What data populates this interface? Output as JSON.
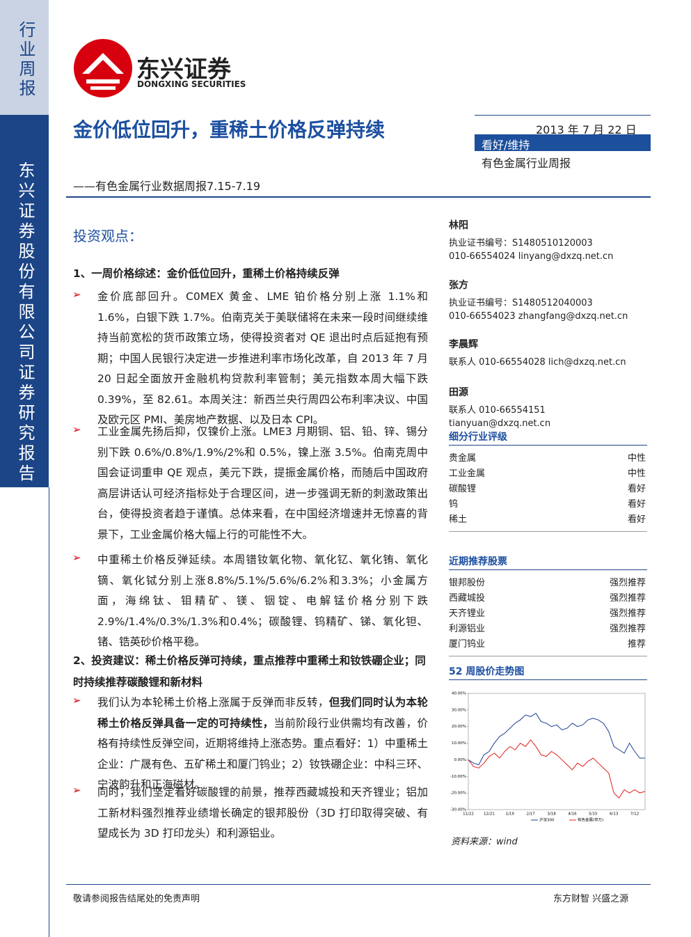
{
  "sidebar": {
    "top": "行业周报",
    "main": "东兴证券股份有限公司证券研究报告"
  },
  "logo": {
    "name": "东兴证券",
    "english": "DONGXING SECURITIES"
  },
  "header": {
    "title": "金价低位回升，重稀土价格反弹持续",
    "subtitle": "——有色金属行业数据周报7.15-7.19",
    "date": "2013 年 7 月 22 日",
    "rating": "看好/维持",
    "report_type": "有色金属行业周报"
  },
  "body": {
    "heading": "投资观点：",
    "sections": [
      {
        "heading": "1、一周价格综述：金价低位回升，重稀土价格持续反弹",
        "bullets": [
          [
            {
              "text": "金价底部回升。C0MEX 黄金、LME 铂价格分别上涨 1.1%和 1.6%，白银下跌 1.7%。伯南克关于美联储将在未来一段时间继续维持当前宽松的货币政策立场，使得投资者对 QE 退出时点后延抱有预期；中国人民银行决定进一步推进利率市场化改革，自 2013 年 7 月 20 日起全面放开金融机构贷款利率管制；美元指数本周大幅下跌 0.39%，至 82.61。本周关注：新西兰央行周四公布利率决议、中国及欧元区 PMI、美房地产数据、以及日本 CPI。",
              "bold": false
            }
          ],
          [
            {
              "text": "工业金属先扬后抑，仅镍价上涨。LME3 月期铜、铝、铅、锌、锡分别下跌 0.6%/0.8%/1.9%/2%和 0.5%，镍上涨 3.5%。伯南克周中国会证词重申 QE 观点，美元下跌，提振金属价格，而随后中国政府高层讲话认可经济指标处于合理区间，进一步强调无新的刺激政策出台，使得投资者趋于谨慎。总体来看，在中国经济增速并无惊喜的背景下，工业金属价格大幅上行的可能性不大。",
              "bold": false
            }
          ],
          [
            {
              "text": "中重稀土价格反弹延续。本周镨钕氧化物、氧化钇、氧化铕、氧化镝、氧化铽分别上涨8.8%/5.1%/5.6%/6.2%和3.3%；小金属方面，海绵钛、钼精矿、镁、铟锭、电解锰价格分别下跌 2.9%/1.4%/0.3%/1.3%和0.4%；碳酸锂、钨精矿、锑、氧化钽、锗、锆英砂价格平稳。",
              "bold": false
            }
          ]
        ]
      },
      {
        "heading": "2、投资建议：稀土价格反弹可持续，重点推荐中重稀土和钕铁硼企业；同时持续推荐碳酸锂和新材料",
        "bullets": [
          [
            {
              "text": "我们认为本轮稀土价格上涨属于反弹而非反转，",
              "bold": false
            },
            {
              "text": "但我们同时认为本轮稀土价格反弹具备一定的可持续性，",
              "bold": true
            },
            {
              "text": "当前阶段行业供需均有改善，价格有持续性反弹空间，近期将维持上涨态势。重点看好：1）中重稀土企业：广晟有色、五矿稀土和厦门钨业；2）钕铁硼企业：中科三环、宁波韵升和正海磁材。",
              "bold": false
            }
          ],
          [
            {
              "text": "同时，我们坚定看好碳酸锂的前景，推荐西藏城投和天齐锂业；铝加工新材料强烈推荐业绩增长确定的银邦股份（3D 打印取得突破、有望成长为 3D 打印龙头）和利源铝业。",
              "bold": false
            }
          ]
        ]
      }
    ]
  },
  "analysts": [
    {
      "name": "林阳",
      "lines": [
        "执业证书编号：S1480510120003",
        "010-66554024   linyang@dxzq.net.cn"
      ]
    },
    {
      "name": "张方",
      "lines": [
        "执业证书编号：S1480512040003",
        "010-66554023 zhangfang@dxzq.net.cn"
      ]
    },
    {
      "name": "李晨辉",
      "lines": [
        "联系人 010-66554028 lich@dxzq.net.cn"
      ]
    },
    {
      "name": "田源",
      "lines": [
        "联系人 010-66554151",
        "tianyuan@dxzq.net.cn"
      ]
    }
  ],
  "ratings": {
    "title": "细分行业评级",
    "rows": [
      [
        "贵金属",
        "中性"
      ],
      [
        "工业金属",
        "中性"
      ],
      [
        "碳酸锂",
        "看好"
      ],
      [
        "钨",
        "看好"
      ],
      [
        "稀土",
        "看好"
      ]
    ]
  },
  "stocks": {
    "title": "近期推荐股票",
    "rows": [
      [
        "银邦股份",
        "强烈推荐"
      ],
      [
        "西藏城投",
        "强烈推荐"
      ],
      [
        "天齐锂业",
        "强烈推荐"
      ],
      [
        "利源铝业",
        "强烈推荐"
      ],
      [
        "厦门钨业",
        "推荐"
      ]
    ]
  },
  "chart_data": {
    "type": "line",
    "title": "52 周股价走势图",
    "categories": [
      "11/22",
      null,
      null,
      null,
      "12/21",
      null,
      null,
      null,
      "1/19",
      null,
      null,
      null,
      "2/17",
      null,
      null,
      null,
      "3/18",
      null,
      null,
      null,
      "4/16",
      null,
      null,
      null,
      "5/15",
      null,
      null,
      null,
      "6/13",
      null,
      null,
      null,
      "7/12",
      null,
      null
    ],
    "series": [
      {
        "name": "沪深300",
        "color": "#1c3f94",
        "values": [
          0,
          -2,
          -3,
          3,
          5,
          10,
          14,
          16,
          19,
          22,
          24,
          27,
          26,
          28,
          23,
          22,
          20,
          21,
          18,
          19,
          22,
          20,
          21,
          24,
          25,
          24,
          22,
          17,
          8,
          6,
          4,
          10,
          5,
          1,
          1
        ]
      },
      {
        "name": "有色金属(申万)",
        "color": "#e0201b",
        "values": [
          0,
          -4,
          -5,
          -2,
          2,
          4,
          1,
          5,
          8,
          6,
          10,
          8,
          12,
          8,
          3,
          2,
          5,
          3,
          0,
          -3,
          -6,
          -2,
          -4,
          -1,
          1,
          -2,
          -5,
          -8,
          -20,
          -23,
          -18,
          -20,
          -18,
          -20,
          -19
        ]
      }
    ],
    "ylim": [
      -30,
      40
    ],
    "yticks": [
      {
        "value": 40,
        "label": "40.00%"
      },
      {
        "value": 30,
        "label": "30.00%"
      },
      {
        "value": 20,
        "label": "20.00%"
      },
      {
        "value": 10,
        "label": "10.00%"
      },
      {
        "value": 0,
        "label": "0.00%"
      },
      {
        "value": -10,
        "label": "-10.00%"
      },
      {
        "value": -20,
        "label": "-20.00%"
      },
      {
        "value": -30,
        "label": "-30.00%"
      }
    ],
    "source": "资料来源：wind"
  },
  "footer": {
    "left": "敬请参阅报告结尾处的免责声明",
    "right": "东方财智 兴盛之源"
  }
}
